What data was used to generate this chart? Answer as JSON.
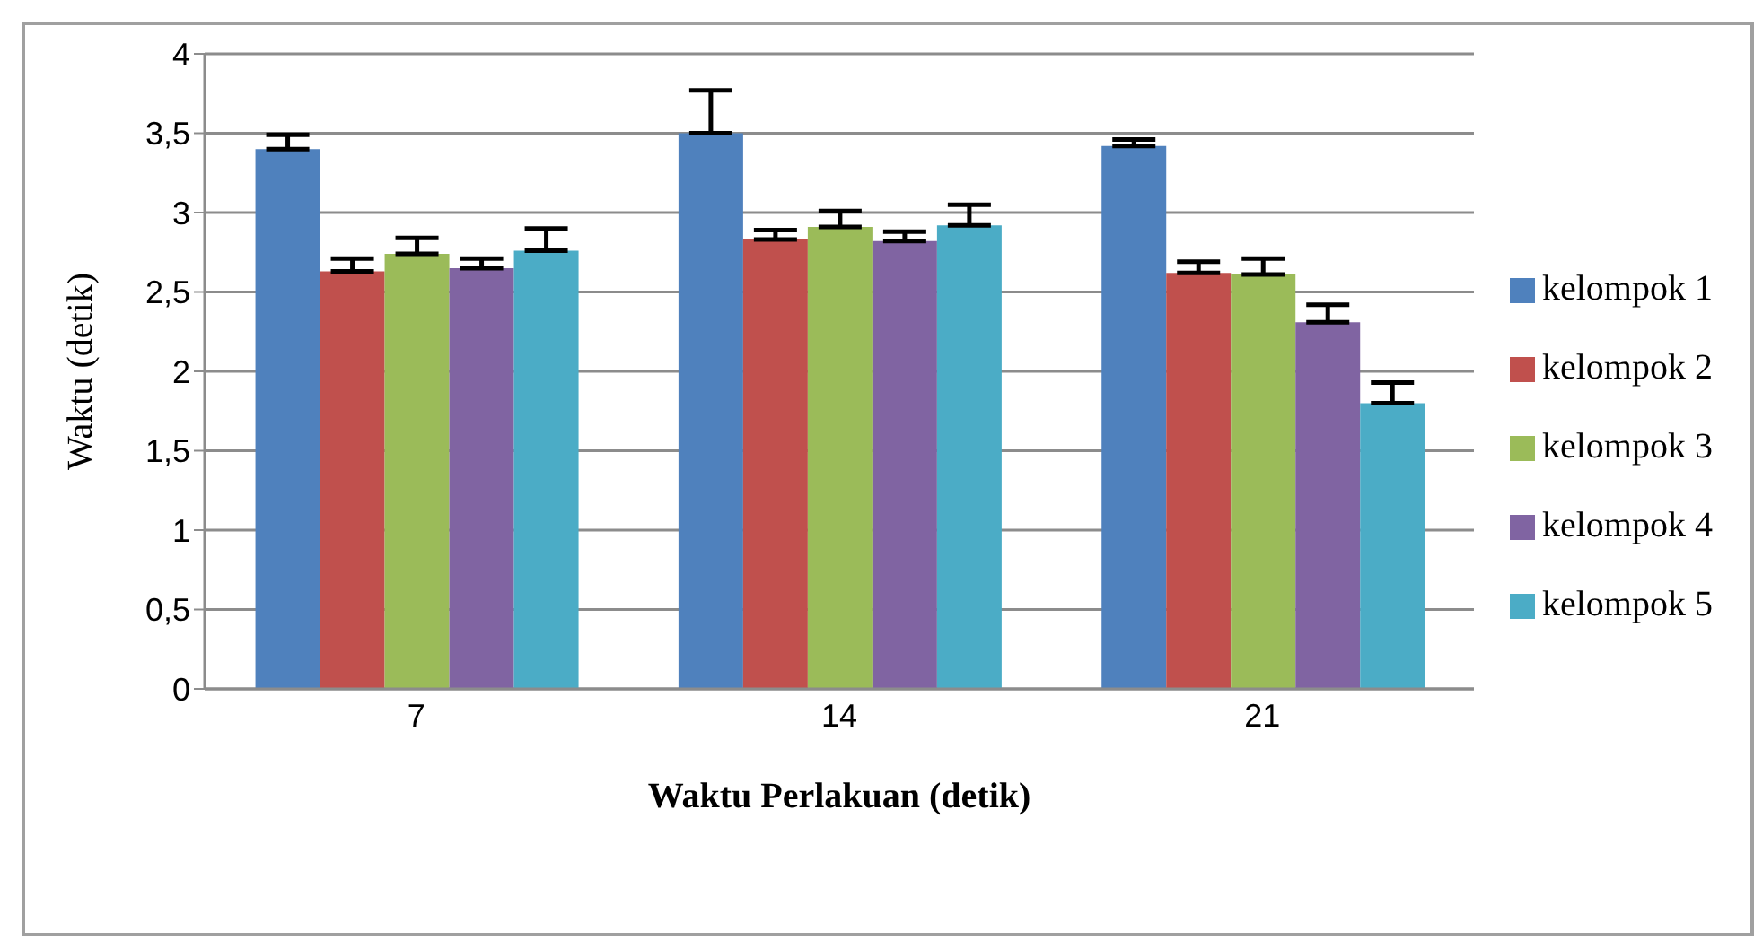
{
  "chart_data": {
    "type": "bar",
    "xlabel": "Waktu  Perlakuan (detik)",
    "ylabel": "Waktu (detik)",
    "categories": [
      "7",
      "14",
      "21"
    ],
    "series": [
      {
        "name": "kelompok 1",
        "color": "#4f81bd",
        "values": [
          3.4,
          3.5,
          3.42
        ],
        "errors": [
          [
            3.4,
            3.49
          ],
          [
            3.5,
            3.77
          ],
          [
            3.42,
            3.46
          ]
        ]
      },
      {
        "name": "kelompok 2",
        "color": "#c0504d",
        "values": [
          2.63,
          2.83,
          2.62
        ],
        "errors": [
          [
            2.63,
            2.71
          ],
          [
            2.83,
            2.89
          ],
          [
            2.62,
            2.69
          ]
        ]
      },
      {
        "name": "kelompok 3",
        "color": "#9bbb59",
        "values": [
          2.74,
          2.91,
          2.61
        ],
        "errors": [
          [
            2.74,
            2.84
          ],
          [
            2.91,
            3.01
          ],
          [
            2.61,
            2.71
          ]
        ]
      },
      {
        "name": "kelompok 4",
        "color": "#8064a2",
        "values": [
          2.65,
          2.82,
          2.31
        ],
        "errors": [
          [
            2.65,
            2.71
          ],
          [
            2.82,
            2.88
          ],
          [
            2.31,
            2.42
          ]
        ]
      },
      {
        "name": "kelompok 5",
        "color": "#4bacc6",
        "values": [
          2.76,
          2.92,
          1.8
        ],
        "errors": [
          [
            2.76,
            2.9
          ],
          [
            2.92,
            3.05
          ],
          [
            1.8,
            1.93
          ]
        ]
      }
    ],
    "ylim": [
      0,
      4
    ],
    "yticks": [
      0,
      {
        "value": 0.5,
        "label": "0,5"
      },
      1,
      {
        "value": 1.5,
        "label": "1,5"
      },
      2,
      {
        "value": 2.5,
        "label": "2,5"
      },
      3,
      {
        "value": 3.5,
        "label": "3,5"
      },
      4
    ],
    "grid": "y",
    "legend": "right"
  }
}
